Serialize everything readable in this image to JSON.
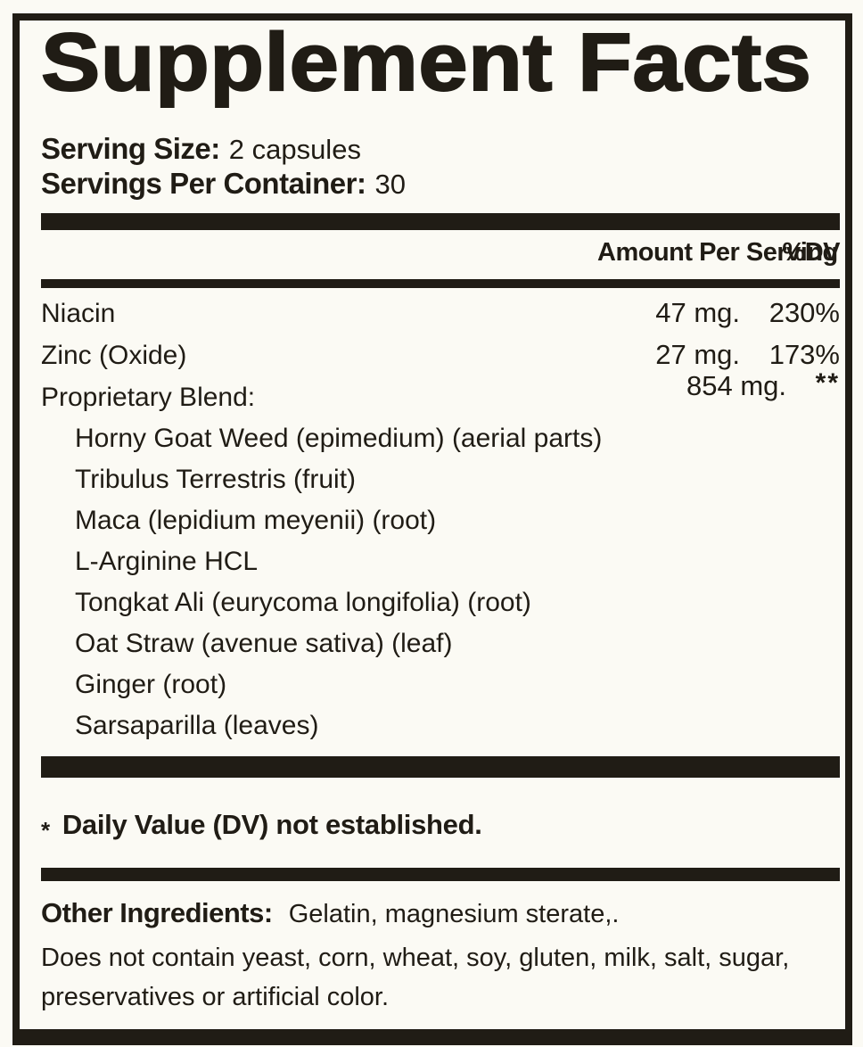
{
  "title": "Supplement Facts",
  "serving": {
    "size_label": "Serving Size:",
    "size_value": "2 capsules",
    "container_label": "Servings Per Container:",
    "container_value": "30"
  },
  "table": {
    "amount_header": "Amount Per Serving",
    "dv_header": "%DV",
    "rows": [
      {
        "name": "Niacin",
        "amount": "47 mg.",
        "dv": "230%"
      },
      {
        "name": "Zinc (Oxide)",
        "amount": "27 mg.",
        "dv": "173%"
      },
      {
        "name": "Proprietary Blend:",
        "amount": "854 mg.",
        "dv": "**"
      }
    ],
    "blend_items": [
      "Horny Goat Weed (epimedium) (aerial parts)",
      "Tribulus Terrestris (fruit)",
      "Maca (lepidium meyenii) (root)",
      "L-Arginine HCL",
      "Tongkat Ali (eurycoma longifolia) (root)",
      "Oat Straw (avenue sativa) (leaf)",
      "Ginger (root)",
      "Sarsaparilla (leaves)"
    ]
  },
  "footnote": {
    "symbol": "*",
    "text": "Daily Value (DV) not established."
  },
  "other_ingredients": {
    "label": "Other Ingredients:",
    "value": "Gelatin, magnesium sterate,."
  },
  "disclaimer_lines": [
    "Does not contain yeast, corn, wheat, soy, gluten, milk, salt, sugar,",
    "preservatives or artificial color."
  ],
  "colors": {
    "ink": "#201c15",
    "background": "#fbfaf4"
  }
}
